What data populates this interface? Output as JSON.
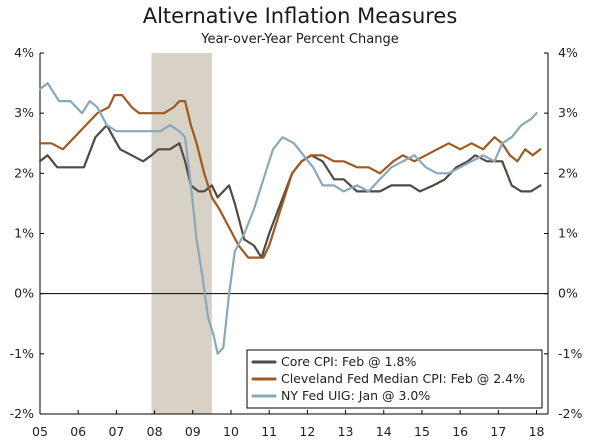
{
  "chart_data": {
    "type": "line",
    "title": "Alternative Inflation Measures",
    "subtitle": "Year-over-Year Percent Change",
    "xlabel": "",
    "ylabel": "",
    "xlim": [
      2005.0,
      2018.3
    ],
    "ylim": [
      -2,
      4
    ],
    "y_ticks": [
      -2,
      -1,
      0,
      1,
      2,
      3,
      4
    ],
    "y_tick_labels": [
      "-2%",
      "-1%",
      "0%",
      "1%",
      "2%",
      "3%",
      "4%"
    ],
    "x_tick_labels": [
      "05",
      "06",
      "07",
      "08",
      "09",
      "10",
      "11",
      "12",
      "13",
      "14",
      "15",
      "16",
      "17",
      "18"
    ],
    "x_tick_years": [
      2005,
      2006,
      2007,
      2008,
      2009,
      2010,
      2011,
      2012,
      2013,
      2014,
      2015,
      2016,
      2017,
      2018
    ],
    "grid": false,
    "legend_position": "bottom-right",
    "recession_shading": {
      "start": 2007.92,
      "end": 2009.5
    },
    "series": [
      {
        "name": "Core CPI: Feb @ 1.8%",
        "color": "#4f4a43",
        "x": [
          2005.0,
          2005.2,
          2005.45,
          2005.7,
          2005.9,
          2006.15,
          2006.45,
          2006.75,
          2006.92,
          2007.1,
          2007.4,
          2007.7,
          2007.92,
          2008.1,
          2008.4,
          2008.65,
          2008.8,
          2008.95,
          2009.15,
          2009.3,
          2009.5,
          2009.65,
          2009.8,
          2009.95,
          2010.1,
          2010.35,
          2010.6,
          2010.8,
          2011.0,
          2011.3,
          2011.6,
          2011.85,
          2012.1,
          2012.4,
          2012.7,
          2012.95,
          2013.3,
          2013.6,
          2013.9,
          2014.2,
          2014.45,
          2014.7,
          2014.95,
          2015.3,
          2015.6,
          2015.9,
          2016.2,
          2016.4,
          2016.7,
          2016.95,
          2017.1,
          2017.35,
          2017.6,
          2017.85,
          2018.1
        ],
        "values": [
          2.2,
          2.3,
          2.1,
          2.1,
          2.1,
          2.1,
          2.6,
          2.8,
          2.6,
          2.4,
          2.3,
          2.2,
          2.3,
          2.4,
          2.4,
          2.5,
          2.2,
          1.8,
          1.7,
          1.7,
          1.8,
          1.6,
          1.7,
          1.8,
          1.5,
          0.9,
          0.8,
          0.6,
          1.0,
          1.5,
          2.0,
          2.2,
          2.3,
          2.2,
          1.9,
          1.9,
          1.7,
          1.7,
          1.7,
          1.8,
          1.8,
          1.8,
          1.7,
          1.8,
          1.9,
          2.1,
          2.2,
          2.3,
          2.2,
          2.2,
          2.2,
          1.8,
          1.7,
          1.7,
          1.8
        ]
      },
      {
        "name": "Cleveland Fed Median CPI: Feb @ 2.4%",
        "color": "#a0581e",
        "x": [
          2005.0,
          2005.3,
          2005.6,
          2005.9,
          2006.2,
          2006.5,
          2006.8,
          2006.95,
          2007.15,
          2007.4,
          2007.6,
          2007.8,
          2008.0,
          2008.25,
          2008.5,
          2008.65,
          2008.8,
          2008.95,
          2009.1,
          2009.3,
          2009.5,
          2009.7,
          2009.95,
          2010.2,
          2010.45,
          2010.65,
          2010.85,
          2011.0,
          2011.3,
          2011.6,
          2011.85,
          2012.1,
          2012.4,
          2012.7,
          2012.95,
          2013.3,
          2013.6,
          2013.9,
          2014.25,
          2014.5,
          2014.8,
          2015.1,
          2015.4,
          2015.7,
          2016.0,
          2016.3,
          2016.6,
          2016.9,
          2017.1,
          2017.3,
          2017.5,
          2017.7,
          2017.9,
          2018.1
        ],
        "values": [
          2.5,
          2.5,
          2.4,
          2.6,
          2.8,
          3.0,
          3.1,
          3.3,
          3.3,
          3.1,
          3.0,
          3.0,
          3.0,
          3.0,
          3.1,
          3.2,
          3.2,
          2.8,
          2.5,
          2.0,
          1.6,
          1.4,
          1.1,
          0.8,
          0.6,
          0.6,
          0.6,
          0.8,
          1.4,
          2.0,
          2.2,
          2.3,
          2.3,
          2.2,
          2.2,
          2.1,
          2.1,
          2.0,
          2.2,
          2.3,
          2.2,
          2.3,
          2.4,
          2.5,
          2.4,
          2.5,
          2.4,
          2.6,
          2.5,
          2.3,
          2.2,
          2.4,
          2.3,
          2.4
        ]
      },
      {
        "name": "NY Fed UIG: Jan @ 3.0%",
        "color": "#8aa8bc",
        "x": [
          2005.0,
          2005.2,
          2005.5,
          2005.8,
          2006.1,
          2006.3,
          2006.5,
          2006.75,
          2007.0,
          2007.3,
          2007.6,
          2007.9,
          2008.15,
          2008.4,
          2008.65,
          2008.8,
          2008.95,
          2009.1,
          2009.25,
          2009.4,
          2009.55,
          2009.65,
          2009.8,
          2009.95,
          2010.1,
          2010.35,
          2010.6,
          2010.85,
          2011.1,
          2011.35,
          2011.65,
          2011.9,
          2012.15,
          2012.4,
          2012.7,
          2012.95,
          2013.3,
          2013.6,
          2013.9,
          2014.2,
          2014.5,
          2014.8,
          2015.1,
          2015.4,
          2015.7,
          2016.0,
          2016.3,
          2016.6,
          2016.9,
          2017.1,
          2017.35,
          2017.6,
          2017.85,
          2018.0
        ],
        "values": [
          3.4,
          3.5,
          3.2,
          3.2,
          3.0,
          3.2,
          3.1,
          2.8,
          2.7,
          2.7,
          2.7,
          2.7,
          2.7,
          2.8,
          2.7,
          2.6,
          1.8,
          0.9,
          0.3,
          -0.4,
          -0.7,
          -1.0,
          -0.9,
          0.0,
          0.7,
          1.0,
          1.4,
          1.9,
          2.4,
          2.6,
          2.5,
          2.3,
          2.1,
          1.8,
          1.8,
          1.7,
          1.8,
          1.7,
          1.9,
          2.1,
          2.2,
          2.3,
          2.1,
          2.0,
          2.0,
          2.1,
          2.2,
          2.3,
          2.2,
          2.5,
          2.6,
          2.8,
          2.9,
          3.0
        ]
      }
    ]
  }
}
